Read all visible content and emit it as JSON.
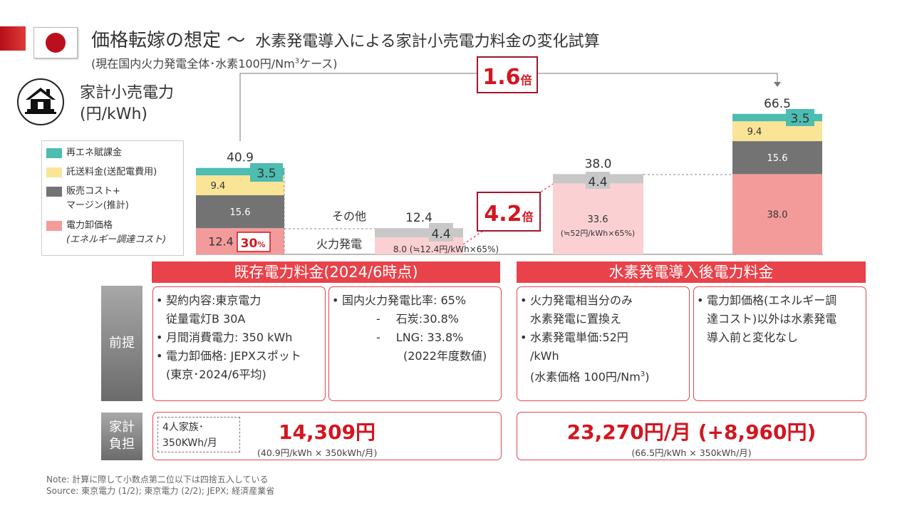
{
  "title": "価格転嫁の想定 ～",
  "title_sub": "水素発電導入による家計小売電力料金の変化試算",
  "subtitle_prefix": "(現在国内火力発電全体･水素100円/Nm",
  "subtitle_sup": "3",
  "subtitle_suffix": "ケース)",
  "chart_data": {
    "type": "bar",
    "ylabel_line1": "家計小売電力",
    "ylabel_line2": "(円/kWh)",
    "legend": [
      {
        "name": "再エネ賦課金",
        "color": "#4dbcb1"
      },
      {
        "name": "託送料金(送配電費用)",
        "color": "#fae597"
      },
      {
        "name": "販売コスト+",
        "name2": "マージン(推計)",
        "color": "#737373"
      },
      {
        "name": "電力卸価格",
        "name2": "(エネルギー調達コスト)",
        "color": "#f39b9b"
      }
    ],
    "bars": [
      {
        "total": "40.9",
        "segments": [
          {
            "value": 12.4,
            "label": "12.4",
            "color": "#f39b9b"
          },
          {
            "value": 15.6,
            "label": "15.6",
            "color": "#737373"
          },
          {
            "value": 9.4,
            "label": "9.4",
            "color": "#fae597"
          },
          {
            "value": 3.5,
            "label": "3.5",
            "color": "#4dbcb1"
          }
        ]
      },
      {
        "total": "12.4",
        "segments": [
          {
            "value": 8.0,
            "label": "8.0 (≒12.4円/kWh×65%)",
            "color": "#fbd0d3"
          },
          {
            "value": 4.4,
            "label": "4.4",
            "color": "#c8c8c8"
          }
        ]
      },
      {
        "total": "38.0",
        "segments": [
          {
            "value": 33.6,
            "label": "33.6",
            "label2": "(≒52円/kWh×65%)",
            "color": "#fbd0d3"
          },
          {
            "value": 4.4,
            "label": "4.4",
            "color": "#c8c8c8"
          }
        ]
      },
      {
        "total": "66.5",
        "segments": [
          {
            "value": 38.0,
            "label": "38.0",
            "color": "#f39b9b"
          },
          {
            "value": 15.6,
            "label": "15.6",
            "color": "#737373"
          },
          {
            "value": 9.4,
            "label": "9.4",
            "color": "#fae597"
          },
          {
            "value": 3.5,
            "label": "3.5",
            "color": "#4dbcb1"
          }
        ]
      }
    ],
    "row_label_other": "その他",
    "row_label_thermal": "火力発電",
    "pct_30_num": "30",
    "pct_30_unit": "%",
    "ratio_16_num": "1.6",
    "ratio_16_unit": "倍",
    "ratio_42_num": "4.2",
    "ratio_42_unit": "倍",
    "ylim": [
      0,
      70
    ]
  },
  "sections": {
    "existing": "既存電力料金(2024/6時点)",
    "hydrogen": "水素発電導入後電力料金"
  },
  "premise_label": "前提",
  "burden_label_1": "家計",
  "burden_label_2": "負担",
  "cards": {
    "c1": [
      "契約内容:東京電力",
      "従量電灯B 30A",
      "月間消費電力: 350 kWh",
      "電力卸価格: JEPXスポット",
      "(東京･2024/6平均)"
    ],
    "c2": [
      "国内火力発電比率: 65%",
      "-",
      "石炭:30.8%",
      "-",
      "LNG: 33.8%",
      "(2022年度数値)"
    ],
    "c3": [
      "火力発電相当分のみ",
      "水素発電に置換え",
      "水素発電単価:52円",
      "/kWh",
      "(水素価格 100円/Nm",
      "3",
      ")"
    ],
    "c4": [
      "電力卸価格(エネルギー調",
      "達コスト)以外は水素発電",
      "導入前と変化なし"
    ]
  },
  "family_1": "4人家族･",
  "family_2": "350KWh/月",
  "existing_cost": "14,309円",
  "existing_calc": "(40.9円/kWh × 350kWh/月)",
  "hydrogen_cost": "23,270円/月 (+8,960円)",
  "hydrogen_calc": "(66.5円/kWh × 350kWh/月)",
  "note": "Note: 計算に際して小数点第二位以下は四捨五入している",
  "source": "Source: 東京電力 (1/2); 東京電力 (2/2); JEPX; 経済産業省"
}
